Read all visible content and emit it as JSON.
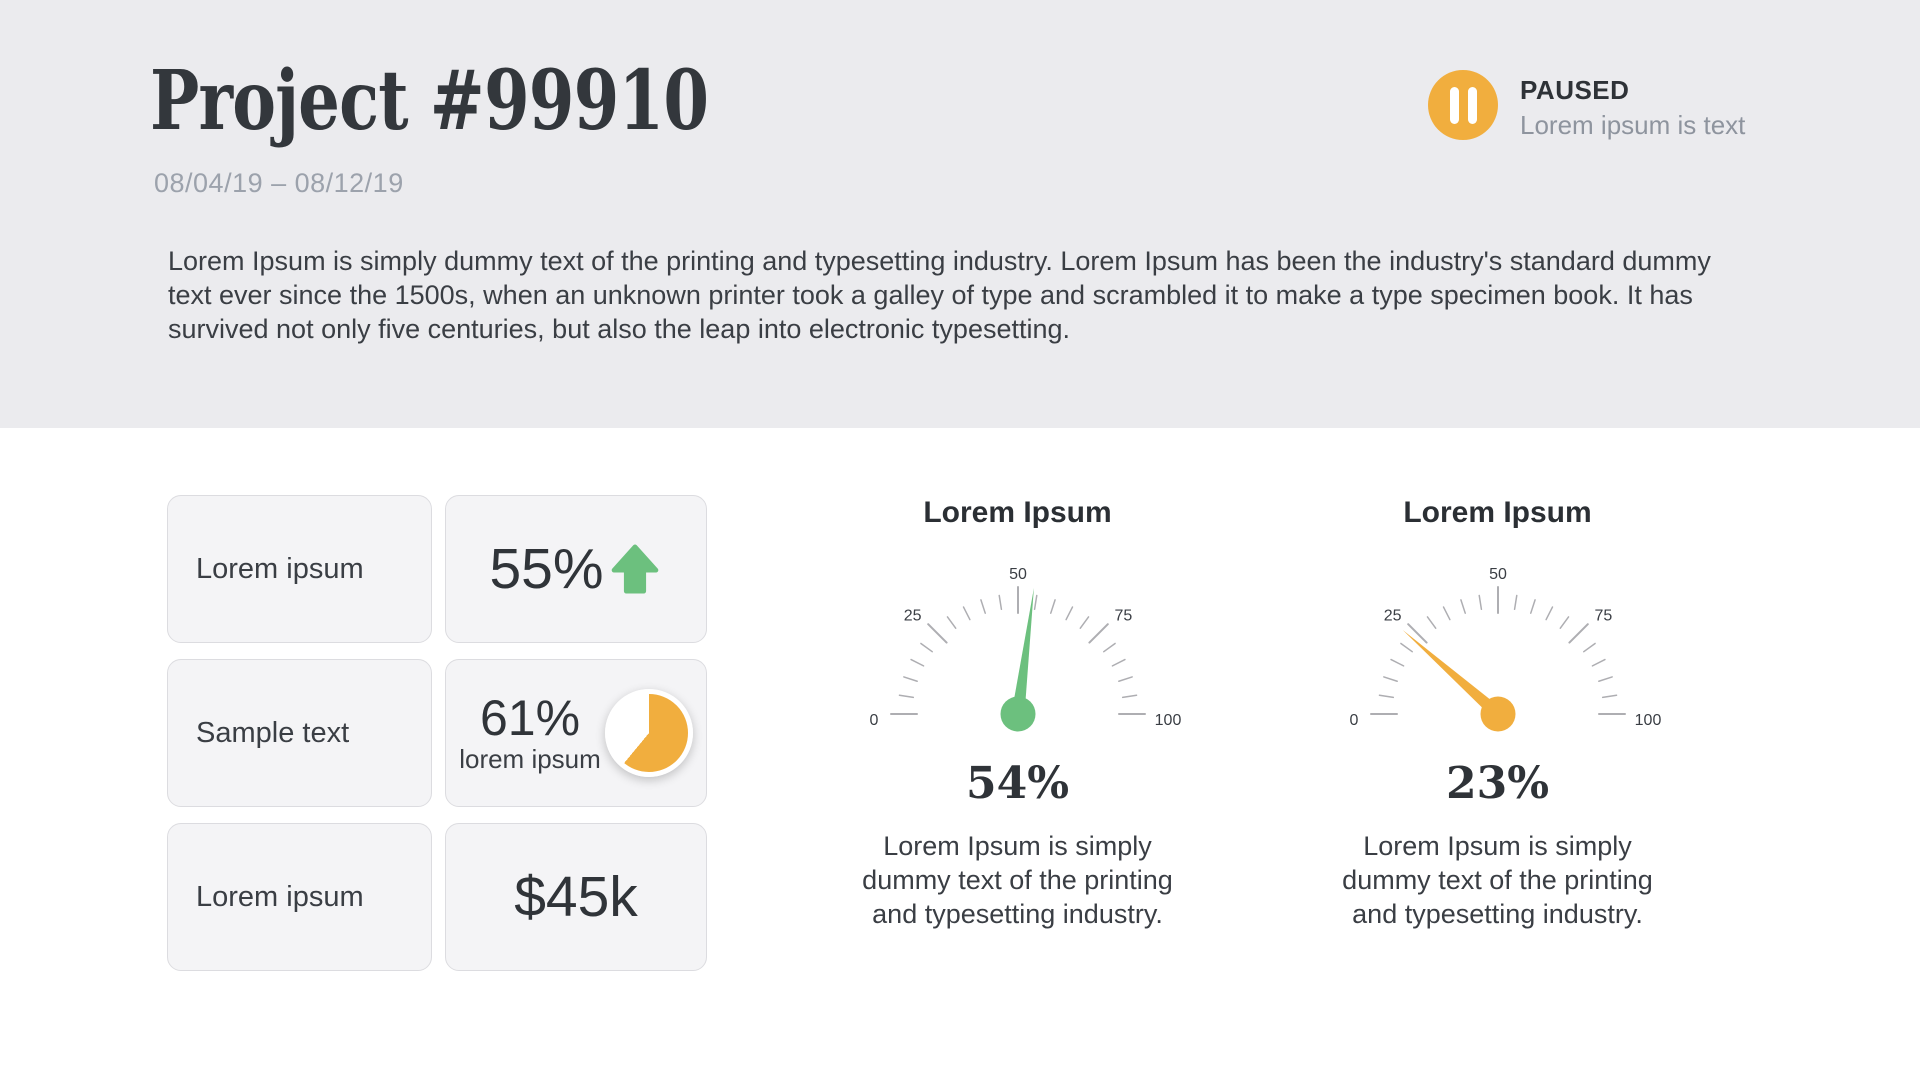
{
  "header": {
    "title": "Project #99910",
    "date_range": "08/04/19 – 08/12/19",
    "description": "Lorem Ipsum is simply dummy text of the printing and typesetting industry. Lorem Ipsum has been the industry's standard dummy text ever since the 1500s, when an unknown printer took a galley of type and scrambled it to make a type specimen book. It has survived not only five centuries, but also the leap into electronic typesetting.",
    "status": {
      "label": "PAUSED",
      "sublabel": "Lorem ipsum is text",
      "icon": "pause-icon",
      "badge_color": "#F1AE3E"
    }
  },
  "stats": {
    "rows": [
      {
        "label": "Lorem ipsum",
        "value": "55%",
        "trend_icon": "arrow-up-icon",
        "trend_color": "#6CC07E"
      },
      {
        "label": "Sample text",
        "value": "61%",
        "caption": "lorem ipsum",
        "pie_percent": 61,
        "pie_color": "#F1AE3E"
      },
      {
        "label": "Lorem ipsum",
        "value": "$45k"
      }
    ]
  },
  "chart_data": [
    {
      "type": "gauge",
      "title": "Lorem Ipsum",
      "value": 54,
      "value_label": "54%",
      "min": 0,
      "max": 100,
      "tick_step": 5,
      "major_tick_labels": [
        0,
        25,
        50,
        75,
        100
      ],
      "needle_color": "#6CC07E",
      "description_lines": [
        "Lorem Ipsum is simply",
        "dummy text of the printing",
        "and typesetting industry."
      ]
    },
    {
      "type": "gauge",
      "title": "Lorem Ipsum",
      "value": 23,
      "value_label": "23%",
      "min": 0,
      "max": 100,
      "tick_step": 5,
      "major_tick_labels": [
        0,
        25,
        50,
        75,
        100
      ],
      "needle_color": "#F1AE3E",
      "description_lines": [
        "Lorem Ipsum is simply",
        "dummy text of the printing",
        "and typesetting industry."
      ]
    }
  ],
  "colors": {
    "header_bg": "#EBEBEE",
    "card_bg": "#F4F4F6",
    "card_border": "#DCDCE0",
    "text_dark": "#2F3338",
    "text_body": "#3A3E44",
    "text_muted": "#9CA2AC",
    "green": "#6CC07E",
    "orange": "#F1AE3E",
    "tick": "#AEAEB2"
  }
}
